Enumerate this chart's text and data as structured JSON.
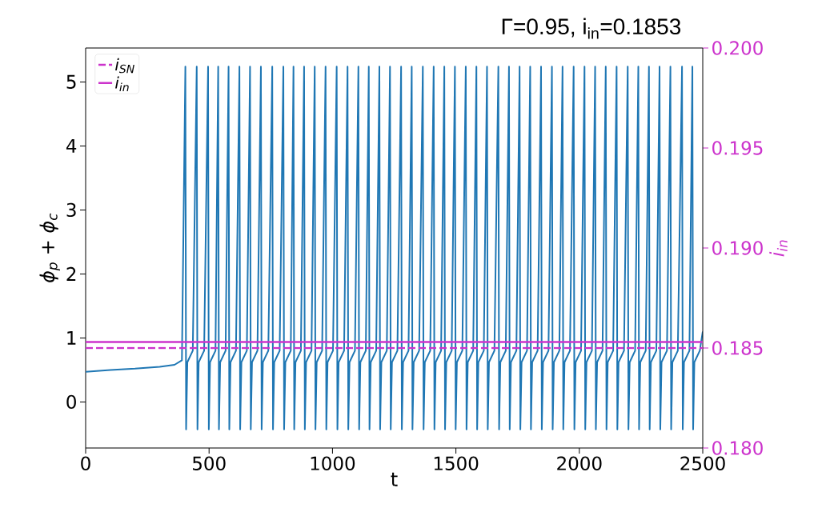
{
  "chart_data": {
    "type": "line",
    "title": "Γ=0.95, i$_{in}$=0.1853",
    "xlabel": "t",
    "ylabel": "ϕ$_{p}$ + ϕ$_{c}$",
    "y2label": "i$_{in}$",
    "xlim": [
      0,
      2500
    ],
    "ylim": [
      -0.72,
      5.53
    ],
    "y2lim": [
      0.18,
      0.2
    ],
    "xticks": [
      0,
      500,
      1000,
      1500,
      2000,
      2500
    ],
    "yticks": [
      0,
      1,
      2,
      3,
      4,
      5
    ],
    "y2ticks": [
      {
        "value": 0.18,
        "label": "0.180"
      },
      {
        "value": 0.185,
        "label": "0.185"
      },
      {
        "value": 0.19,
        "label": "0.190"
      },
      {
        "value": 0.195,
        "label": "0.195"
      },
      {
        "value": 0.2,
        "label": "0.200"
      }
    ],
    "legend": "top left",
    "ref_lines": [
      {
        "axis": "y2",
        "value": 0.185,
        "label": "i$_{SN}$",
        "color": "#cc33cc",
        "line_style": "dashed"
      },
      {
        "axis": "y2",
        "value": 0.1853,
        "label": "i$_{in}$",
        "color": "#cc33cc",
        "line_style": "solid"
      }
    ],
    "series": [
      {
        "color": "#1f77b4",
        "x": [
          0,
          100,
          200,
          300,
          360,
          390,
          404,
          407,
          412,
          434,
          450,
          453,
          458,
          480,
          496,
          499,
          504,
          526,
          537,
          540,
          545,
          567,
          579,
          582,
          587,
          609,
          623,
          626,
          631,
          653,
          666,
          669,
          674,
          696,
          710,
          713,
          718,
          740,
          756,
          759,
          764,
          786,
          801,
          804,
          809,
          831,
          842,
          845,
          850,
          872,
          885,
          888,
          893,
          915,
          928,
          931,
          936,
          958,
          972,
          975,
          980,
          1002,
          1017,
          1020,
          1025,
          1047,
          1061,
          1064,
          1069,
          1091,
          1105,
          1108,
          1113,
          1135,
          1147,
          1150,
          1155,
          1177,
          1190,
          1193,
          1198,
          1220,
          1233,
          1236,
          1241,
          1263,
          1278,
          1281,
          1286,
          1308,
          1321,
          1324,
          1329,
          1351,
          1366,
          1369,
          1374,
          1396,
          1410,
          1413,
          1418,
          1440,
          1453,
          1456,
          1461,
          1483,
          1496,
          1499,
          1504,
          1526,
          1540,
          1543,
          1548,
          1570,
          1583,
          1586,
          1591,
          1613,
          1626,
          1629,
          1634,
          1656,
          1672,
          1675,
          1680,
          1702,
          1715,
          1718,
          1723,
          1745,
          1758,
          1761,
          1766,
          1788,
          1801,
          1804,
          1809,
          1831,
          1845,
          1848,
          1853,
          1875,
          1889,
          1892,
          1897,
          1919,
          1932,
          1935,
          1940,
          1962,
          1977,
          1980,
          1985,
          2007,
          2021,
          2024,
          2029,
          2051,
          2064,
          2067,
          2072,
          2094,
          2107,
          2110,
          2115,
          2137,
          2151,
          2154,
          2159,
          2181,
          2196,
          2199,
          2204,
          2226,
          2239,
          2242,
          2247,
          2269,
          2282,
          2285,
          2290,
          2312,
          2325,
          2328,
          2333,
          2355,
          2369,
          2372,
          2377,
          2399,
          2416,
          2419,
          2424,
          2446,
          2458,
          2461,
          2466,
          2488,
          2500
        ],
        "values": [
          0.47,
          0.5,
          0.52,
          0.55,
          0.58,
          0.65,
          5.24,
          -0.43,
          0.62,
          0.8,
          5.24,
          -0.43,
          0.62,
          0.8,
          5.24,
          -0.43,
          0.62,
          0.8,
          5.24,
          -0.43,
          0.62,
          0.8,
          5.24,
          -0.43,
          0.62,
          0.8,
          5.24,
          -0.43,
          0.62,
          0.8,
          5.24,
          -0.43,
          0.62,
          0.8,
          5.24,
          -0.43,
          0.62,
          0.8,
          5.24,
          -0.43,
          0.62,
          0.8,
          5.24,
          -0.43,
          0.62,
          0.8,
          5.24,
          -0.43,
          0.62,
          0.8,
          5.24,
          -0.43,
          0.62,
          0.8,
          5.24,
          -0.43,
          0.62,
          0.8,
          5.24,
          -0.43,
          0.62,
          0.8,
          5.24,
          -0.43,
          0.62,
          0.8,
          5.24,
          -0.43,
          0.62,
          0.8,
          5.24,
          -0.43,
          0.62,
          0.8,
          5.24,
          -0.43,
          0.62,
          0.8,
          5.24,
          -0.43,
          0.62,
          0.8,
          5.24,
          -0.43,
          0.62,
          0.8,
          5.24,
          -0.43,
          0.62,
          0.8,
          5.24,
          -0.43,
          0.62,
          0.8,
          5.24,
          -0.43,
          0.62,
          0.8,
          5.24,
          -0.43,
          0.62,
          0.8,
          5.24,
          -0.43,
          0.62,
          0.8,
          5.24,
          -0.43,
          0.62,
          0.8,
          5.24,
          -0.43,
          0.62,
          0.8,
          5.24,
          -0.43,
          0.62,
          0.8,
          5.24,
          -0.43,
          0.62,
          0.8,
          5.24,
          -0.43,
          0.62,
          0.8,
          5.24,
          -0.43,
          0.62,
          0.8,
          5.24,
          -0.43,
          0.62,
          0.8,
          5.24,
          -0.43,
          0.62,
          0.8,
          5.24,
          -0.43,
          0.62,
          0.8,
          5.24,
          -0.43,
          0.62,
          0.8,
          5.24,
          -0.43,
          0.62,
          0.8,
          5.24,
          -0.43,
          0.62,
          0.8,
          5.24,
          -0.43,
          0.62,
          0.8,
          5.24,
          -0.43,
          0.62,
          0.8,
          5.24,
          -0.43,
          0.62,
          0.8,
          5.24,
          -0.43,
          0.62,
          0.8,
          5.24,
          -0.43,
          0.62,
          0.8,
          5.24,
          -0.43,
          0.62,
          0.8,
          5.24,
          -0.43,
          0.62,
          0.8,
          5.24,
          -0.43,
          0.62,
          0.8,
          5.24,
          -0.43,
          0.62,
          0.8,
          5.24,
          -0.43,
          0.62,
          0.8,
          5.24,
          -0.43,
          0.62,
          0.8,
          1.1
        ]
      }
    ]
  }
}
